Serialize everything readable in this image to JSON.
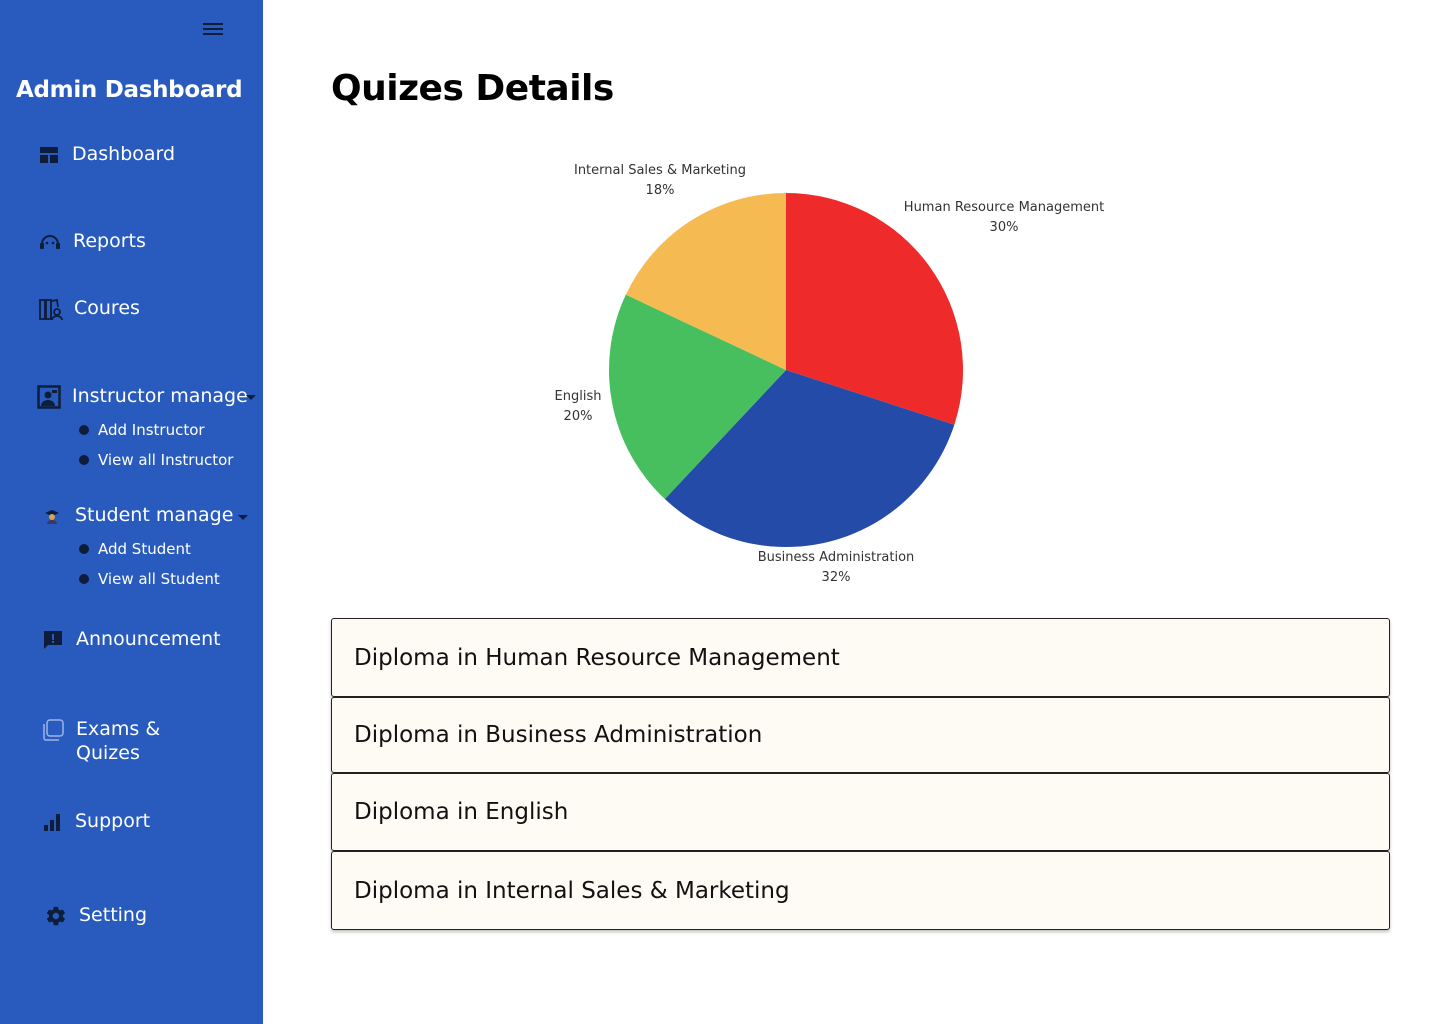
{
  "sidebar": {
    "brand": "Admin Dashboard",
    "items": {
      "dashboard": "Dashboard",
      "reports": "Reports",
      "courses": "Coures",
      "instructor": "Instructor manage",
      "student": "Student manage",
      "announcement": "Announcement",
      "exams_line1": "Exams &",
      "exams_line2": "Quizes",
      "support": "Support",
      "setting": "Setting"
    },
    "instructor_sub": [
      "Add Instructor",
      "View all Instructor"
    ],
    "student_sub": [
      "Add Student",
      "View all Student"
    ],
    "colors": {
      "background": "#285bbd",
      "icon_dark": "#0d1d3a"
    }
  },
  "main": {
    "title": "Quizes Details",
    "courses": [
      "Diploma in Human Resource Management",
      "Diploma in Business Administration",
      "Diploma in English",
      "Diploma in Internal Sales & Marketing"
    ]
  },
  "chart_data": {
    "type": "pie",
    "slices": [
      {
        "label": "Human Resource Management",
        "value": 30,
        "display": "30%",
        "color": "#ee2a2b"
      },
      {
        "label": "Business Administration",
        "value": 32,
        "display": "32%",
        "color": "#244ba8"
      },
      {
        "label": "English",
        "value": 20,
        "display": "20%",
        "color": "#47bf5f"
      },
      {
        "label": "Internal Sales & Marketing",
        "value": 18,
        "display": "18%",
        "color": "#f5bb52"
      }
    ]
  }
}
